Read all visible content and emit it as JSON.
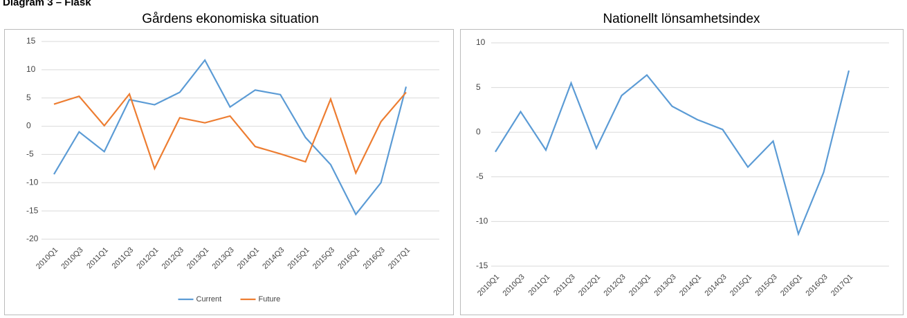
{
  "heading": "Diagram 3 – Fläsk",
  "chart_data": [
    {
      "type": "line",
      "title": "Gårdens ekonomiska situation",
      "categories": [
        "2010Q1",
        "2010Q3",
        "2011Q1",
        "2011Q3",
        "2012Q1",
        "2012Q3",
        "2013Q1",
        "2013Q3",
        "2014Q1",
        "2014Q3",
        "2015Q1",
        "2015Q3",
        "2016Q1",
        "2016Q3",
        "2017Q1"
      ],
      "series": [
        {
          "name": "Current",
          "color": "#5b9bd5",
          "values": [
            -8.5,
            -1,
            -4.5,
            4.7,
            3.8,
            6,
            11.7,
            3.4,
            6.4,
            5.6,
            -2,
            -6.8,
            -15.6,
            -10,
            7
          ]
        },
        {
          "name": "Future",
          "color": "#ed7d31",
          "values": [
            3.9,
            5.3,
            0.1,
            5.7,
            -7.5,
            1.5,
            0.6,
            1.8,
            -3.6,
            -4.9,
            -6.3,
            4.8,
            -8.3,
            0.8,
            6
          ]
        }
      ],
      "ylim": [
        -20,
        15
      ],
      "yticks": [
        -20,
        -15,
        -10,
        -5,
        0,
        5,
        10,
        15
      ],
      "grid": true,
      "legend": "bottom"
    },
    {
      "type": "line",
      "title": "Nationellt lönsamhetsindex",
      "categories": [
        "2010Q1",
        "2010Q3",
        "2011Q1",
        "2011Q3",
        "2012Q1",
        "2012Q3",
        "2013Q1",
        "2013Q3",
        "2014Q1",
        "2014Q3",
        "2015Q1",
        "2015Q3",
        "2016Q1",
        "2016Q3",
        "2017Q1"
      ],
      "series": [
        {
          "color": "#5b9bd5",
          "values": [
            -2.2,
            2.3,
            -2,
            5.5,
            -1.8,
            4.1,
            6.4,
            2.9,
            1.4,
            0.3,
            -3.9,
            -1,
            -11.4,
            -4.5,
            6.9
          ]
        }
      ],
      "ylim": [
        -15,
        10
      ],
      "yticks": [
        -15,
        -10,
        -5,
        0,
        5,
        10
      ],
      "grid": true
    }
  ]
}
